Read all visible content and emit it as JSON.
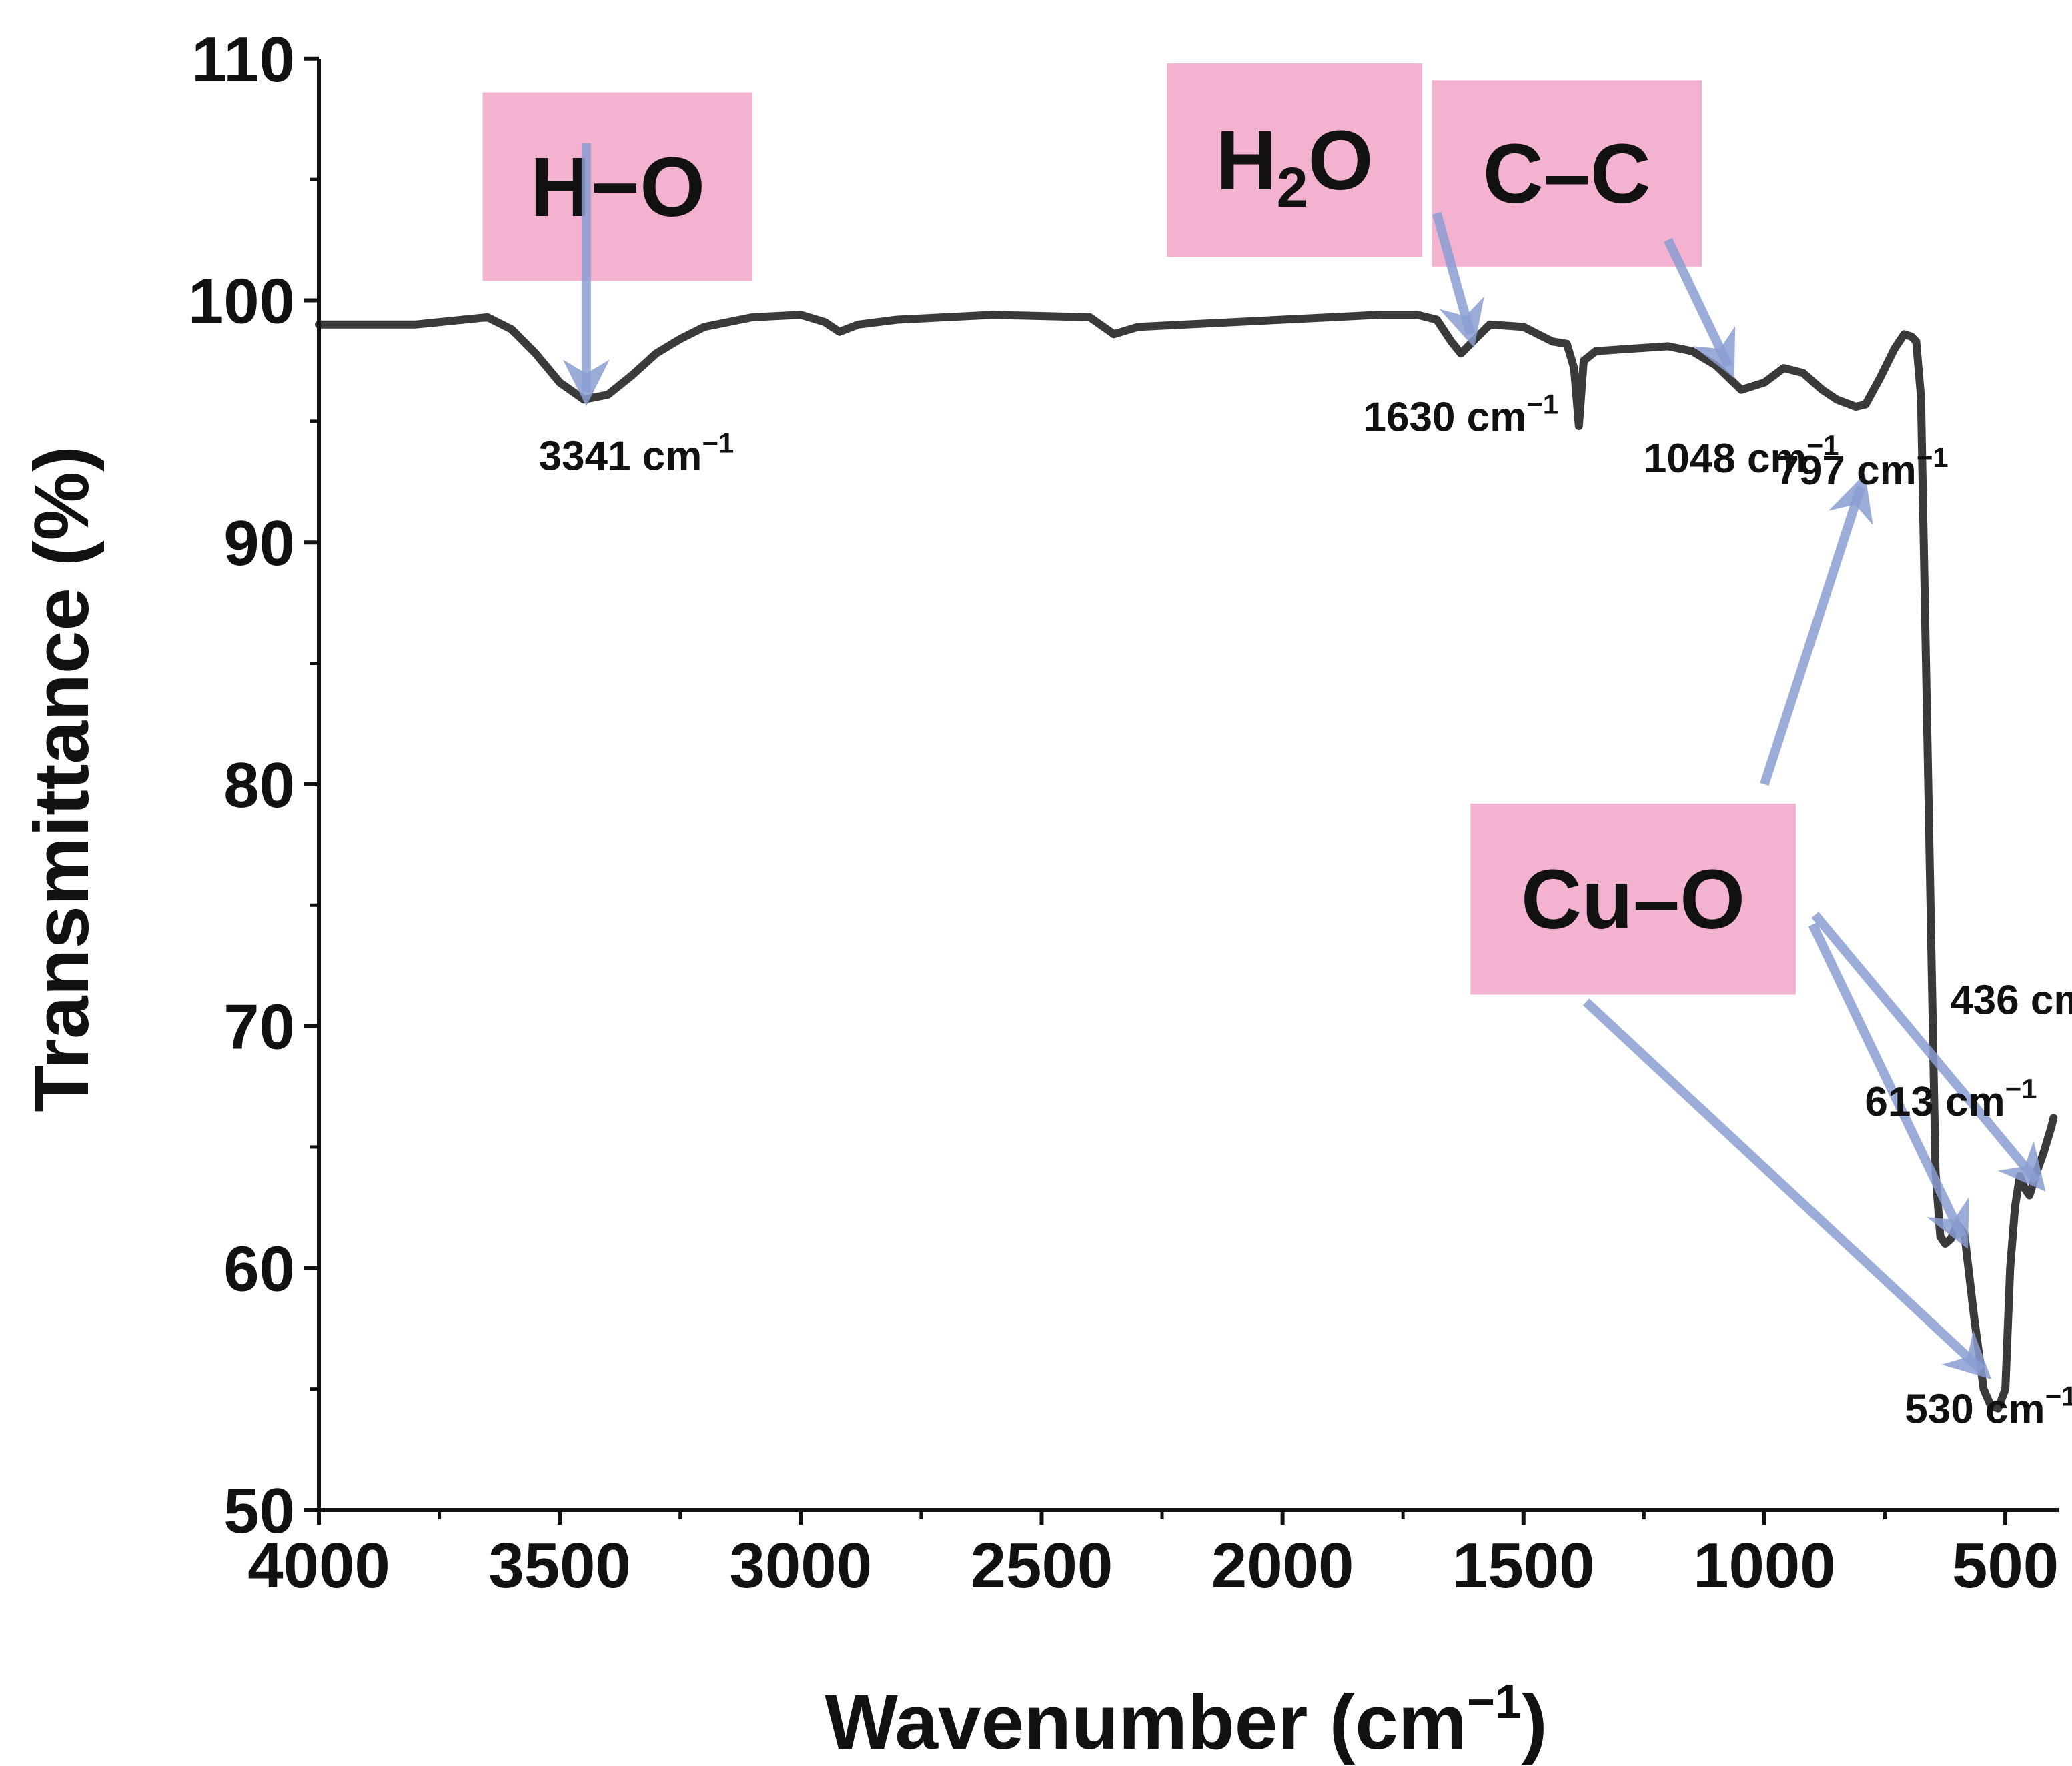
{
  "chart_data": {
    "type": "line",
    "xlabel_parts": {
      "main": "Wavenumber (cm",
      "sup": "−1",
      "end": ")"
    },
    "ylabel": "Transmittance (%)",
    "xlim": [
      4000,
      400
    ],
    "ylim": [
      50,
      110
    ],
    "x_ticks": [
      4000,
      3500,
      3000,
      2500,
      2000,
      1500,
      1000,
      500
    ],
    "y_ticks": [
      50,
      60,
      70,
      80,
      90,
      100,
      110
    ],
    "grid": false,
    "series": [
      {
        "color": "#3a3a3a",
        "points": [
          [
            4000,
            99.0
          ],
          [
            3900,
            99.0
          ],
          [
            3800,
            99.0
          ],
          [
            3700,
            99.2
          ],
          [
            3650,
            99.3
          ],
          [
            3600,
            98.8
          ],
          [
            3550,
            97.8
          ],
          [
            3500,
            96.6
          ],
          [
            3450,
            95.9
          ],
          [
            3400,
            96.1
          ],
          [
            3350,
            96.9
          ],
          [
            3300,
            97.8
          ],
          [
            3250,
            98.4
          ],
          [
            3200,
            98.9
          ],
          [
            3100,
            99.3
          ],
          [
            3000,
            99.4
          ],
          [
            2950,
            99.1
          ],
          [
            2920,
            98.7
          ],
          [
            2880,
            99.0
          ],
          [
            2800,
            99.2
          ],
          [
            2600,
            99.4
          ],
          [
            2400,
            99.3
          ],
          [
            2350,
            98.6
          ],
          [
            2300,
            98.9
          ],
          [
            2200,
            99.0
          ],
          [
            2000,
            99.2
          ],
          [
            1800,
            99.4
          ],
          [
            1720,
            99.4
          ],
          [
            1680,
            99.2
          ],
          [
            1650,
            98.3
          ],
          [
            1630,
            97.8
          ],
          [
            1600,
            98.4
          ],
          [
            1570,
            99.0
          ],
          [
            1500,
            98.9
          ],
          [
            1440,
            98.3
          ],
          [
            1410,
            98.2
          ],
          [
            1395,
            97.2
          ],
          [
            1385,
            94.8
          ],
          [
            1375,
            97.5
          ],
          [
            1350,
            97.9
          ],
          [
            1200,
            98.1
          ],
          [
            1150,
            97.9
          ],
          [
            1100,
            97.3
          ],
          [
            1048,
            96.3
          ],
          [
            1000,
            96.6
          ],
          [
            960,
            97.2
          ],
          [
            920,
            97.0
          ],
          [
            880,
            96.3
          ],
          [
            850,
            95.9
          ],
          [
            810,
            95.6
          ],
          [
            790,
            95.7
          ],
          [
            760,
            96.8
          ],
          [
            730,
            98.0
          ],
          [
            710,
            98.6
          ],
          [
            695,
            98.5
          ],
          [
            685,
            98.3
          ],
          [
            675,
            96.0
          ],
          [
            660,
            80.0
          ],
          [
            645,
            64.0
          ],
          [
            635,
            61.3
          ],
          [
            625,
            61.0
          ],
          [
            613,
            61.2
          ],
          [
            600,
            61.8
          ],
          [
            585,
            61.4
          ],
          [
            565,
            58.0
          ],
          [
            545,
            55.0
          ],
          [
            530,
            54.3
          ],
          [
            515,
            54.2
          ],
          [
            500,
            55.0
          ],
          [
            490,
            60.0
          ],
          [
            480,
            62.5
          ],
          [
            470,
            63.8
          ],
          [
            460,
            63.3
          ],
          [
            450,
            63.0
          ],
          [
            436,
            63.9
          ],
          [
            420,
            64.8
          ],
          [
            405,
            65.8
          ],
          [
            400,
            66.2
          ]
        ]
      }
    ],
    "peak_labels": [
      {
        "text": "3341 cm",
        "x": 3341,
        "y": 93.0
      },
      {
        "text": "1630 cm",
        "x": 1630,
        "y": 94.6
      },
      {
        "text": "1048 cm",
        "x": 1048,
        "y": 92.9
      },
      {
        "text": "797 cm",
        "x": 797,
        "y": 92.4
      },
      {
        "text": "436 cm",
        "x": 436,
        "y": 70.5
      },
      {
        "text": "613 cm",
        "x": 613,
        "y": 66.3
      },
      {
        "text": "530 cm",
        "x": 530,
        "y": 53.6
      }
    ],
    "peak_label_sup": "−1",
    "annotation_boxes": [
      {
        "text": "H−O",
        "x0": 3660,
        "x1": 3100,
        "y0": 108.6,
        "y1": 100.8,
        "arrows": [
          {
            "from": [
              3445,
              106.5
            ],
            "to": [
              3445,
              96.2
            ]
          }
        ]
      },
      {
        "text": "H",
        "sub": "2",
        "tail": "O",
        "x0": 2240,
        "x1": 1710,
        "y0": 109.8,
        "y1": 101.8,
        "arrows": [
          {
            "from": [
              1680,
              103.6
            ],
            "to": [
              1610,
              98.6
            ]
          }
        ]
      },
      {
        "text": "C–C",
        "x0": 1690,
        "x1": 1130,
        "y0": 109.1,
        "y1": 101.4,
        "arrows": [
          {
            "from": [
              1200,
              102.5
            ],
            "to": [
              1075,
              97.3
            ]
          }
        ]
      },
      {
        "text": "Cu–O",
        "x0": 1610,
        "x1": 935,
        "y0": 79.2,
        "y1": 71.3,
        "arrows": [
          {
            "from": [
              1000,
              80.0
            ],
            "to": [
              800,
              92.3
            ]
          },
          {
            "from": [
              895,
              74.6
            ],
            "to": [
              435,
              63.6
            ]
          },
          {
            "from": [
              900,
              74.2
            ],
            "to": [
              590,
              61.3
            ]
          },
          {
            "from": [
              1370,
              71.0
            ],
            "to": [
              550,
              55.8
            ]
          }
        ]
      }
    ],
    "colors": {
      "line": "#3a3a3a",
      "box_fill": "#f3b2cf",
      "arrow": "#8a9dd2"
    }
  }
}
